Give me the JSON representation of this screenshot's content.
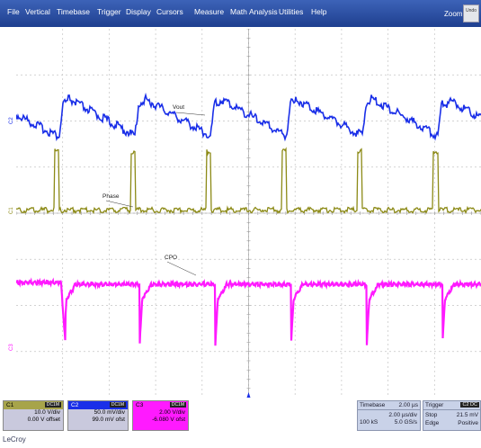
{
  "menu": [
    "File",
    "Vertical",
    "Timebase",
    "Trigger",
    "Display",
    "Cursors",
    "Measure",
    "Math",
    "Analysis",
    "Utilities",
    "Help"
  ],
  "zoom_label": "Zoom",
  "undo_label": "Undo",
  "traces": {
    "vout": {
      "label": "Vout",
      "marker": "C2",
      "color": "#1a2fe8"
    },
    "phase": {
      "label": "Phase",
      "marker": "C1",
      "color": "#8c8a16"
    },
    "cpo": {
      "label": "CPO",
      "marker": "C3",
      "color": "#ff1aff"
    }
  },
  "channels": [
    {
      "name": "C1",
      "coupling": "DC1M",
      "scale": "10.0 V/div",
      "offset": "0.00 V offset",
      "color": "#a7a44a",
      "body_bg": "#c9c9dd"
    },
    {
      "name": "C2",
      "coupling": "DC1M",
      "scale": "50.0 mV/div",
      "offset": "99.0 mV ofst",
      "color": "#1a2fe8",
      "body_bg": "#c9c9dd"
    },
    {
      "name": "C3",
      "coupling": "DC1M",
      "scale": "2.00 V/div",
      "offset": "-6.080 V ofst",
      "color": "#ff1aff",
      "body_bg": "#ff1aff"
    }
  ],
  "timebase": {
    "title": "Timebase",
    "value": "2.00 µs",
    "per_div": "2.00 µs/div",
    "samples": "100 kS",
    "rate": "5.0 GS/s"
  },
  "trigger": {
    "title": "Trigger",
    "channel": "C2 DC",
    "mode": "Stop",
    "level": "21.5 mV",
    "type": "Edge",
    "slope": "Positive"
  },
  "brand": "LeCroy"
}
